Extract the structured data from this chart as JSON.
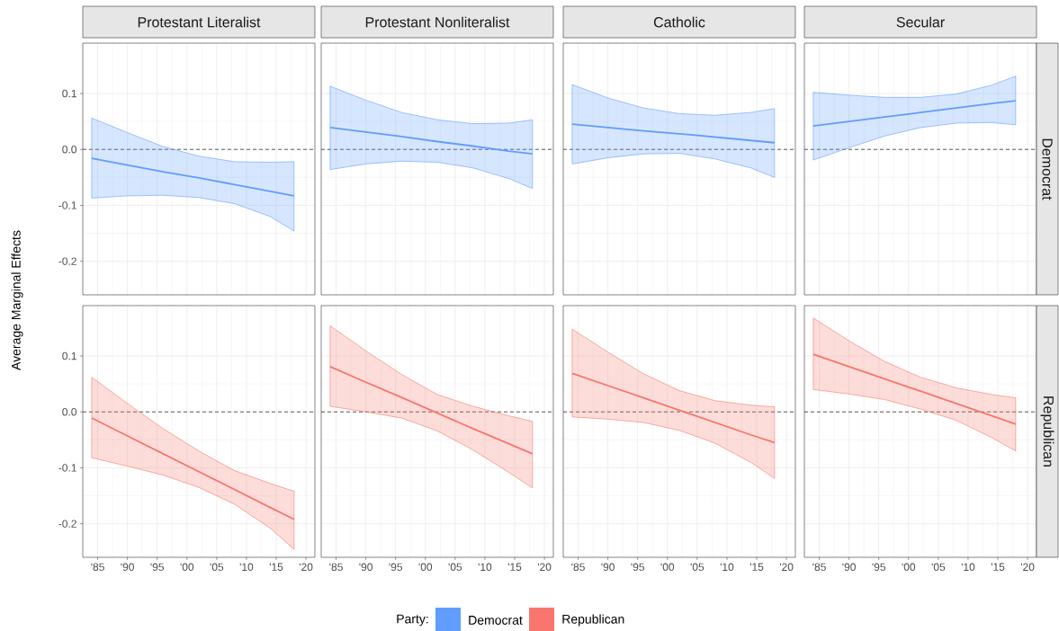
{
  "chart_data": [
    {
      "type": "line",
      "title": "Protestant Literalist",
      "ylabel": "Average Marginal Effects",
      "legend": "bottom",
      "legend_title": "Party:",
      "x": [
        1984,
        1990,
        1996,
        2002,
        2008,
        2014,
        2018
      ],
      "xlim": [
        1982.5,
        2021.5
      ],
      "xticks": [
        1985,
        1990,
        1995,
        2000,
        2005,
        2010,
        2015,
        2020
      ],
      "ylim": [
        -0.26,
        0.19
      ],
      "yticks": [
        -0.2,
        -0.1,
        {
          "value": 0,
          "label": "0.0"
        },
        0.1
      ],
      "grid": true,
      "tick_labels": "y",
      "ref_lines": [
        {
          "axis": "y",
          "value": 0,
          "line_style": "dashed"
        }
      ],
      "series": [
        {
          "name": "Democrat",
          "color": "#619cff",
          "values": [
            -0.016,
            -0.028,
            -0.04,
            -0.051,
            -0.063,
            -0.075,
            -0.083
          ],
          "upper": [
            0.056,
            0.03,
            0.005,
            -0.012,
            -0.022,
            -0.023,
            -0.022
          ],
          "lower": [
            -0.087,
            -0.083,
            -0.082,
            -0.086,
            -0.097,
            -0.12,
            -0.146
          ]
        }
      ]
    },
    {
      "type": "line",
      "title": "Protestant Nonliteralist",
      "x": [
        1984,
        1990,
        1996,
        2002,
        2008,
        2014,
        2018
      ],
      "xlim": [
        1982.5,
        2021.5
      ],
      "xticks": [
        1985,
        1990,
        1995,
        2000,
        2005,
        2010,
        2015,
        2020
      ],
      "ylim": [
        -0.26,
        0.19
      ],
      "yticks": [
        -0.2,
        -0.1,
        0,
        0.1
      ],
      "grid": true,
      "tick_labels": false,
      "ref_lines": [
        {
          "axis": "y",
          "value": 0,
          "line_style": "dashed"
        }
      ],
      "series": [
        {
          "color": "#619cff",
          "values": [
            0.039,
            0.031,
            0.023,
            0.014,
            0.006,
            -0.003,
            -0.008
          ],
          "upper": [
            0.113,
            0.088,
            0.066,
            0.053,
            0.046,
            0.047,
            0.053
          ],
          "lower": [
            -0.036,
            -0.026,
            -0.021,
            -0.023,
            -0.033,
            -0.052,
            -0.07
          ]
        }
      ]
    },
    {
      "type": "line",
      "title": "Catholic",
      "x": [
        1984,
        1990,
        1996,
        2002,
        2008,
        2014,
        2018
      ],
      "xlim": [
        1982.5,
        2021.5
      ],
      "xticks": [
        1985,
        1990,
        1995,
        2000,
        2005,
        2010,
        2015,
        2020
      ],
      "ylim": [
        -0.26,
        0.19
      ],
      "yticks": [
        -0.2,
        -0.1,
        0,
        0.1
      ],
      "grid": true,
      "tick_labels": false,
      "ref_lines": [
        {
          "axis": "y",
          "value": 0,
          "line_style": "dashed"
        }
      ],
      "series": [
        {
          "color": "#619cff",
          "values": [
            0.045,
            0.039,
            0.033,
            0.028,
            0.022,
            0.016,
            0.012
          ],
          "upper": [
            0.116,
            0.092,
            0.074,
            0.064,
            0.061,
            0.066,
            0.073
          ],
          "lower": [
            -0.026,
            -0.015,
            -0.008,
            -0.007,
            -0.017,
            -0.033,
            -0.05
          ]
        }
      ]
    },
    {
      "type": "line",
      "title": "Secular",
      "subtitle": "Democrat",
      "x": [
        1984,
        1990,
        1996,
        2002,
        2008,
        2014,
        2018
      ],
      "xlim": [
        1982.5,
        2021.5
      ],
      "xticks": [
        1985,
        1990,
        1995,
        2000,
        2005,
        2010,
        2015,
        2020
      ],
      "ylim": [
        -0.26,
        0.19
      ],
      "yticks": [
        -0.2,
        -0.1,
        0,
        0.1
      ],
      "grid": true,
      "tick_labels": false,
      "ref_lines": [
        {
          "axis": "y",
          "value": 0,
          "line_style": "dashed"
        }
      ],
      "series": [
        {
          "color": "#619cff",
          "values": [
            0.042,
            0.05,
            0.058,
            0.066,
            0.074,
            0.082,
            0.087
          ],
          "upper": [
            0.102,
            0.097,
            0.093,
            0.093,
            0.099,
            0.115,
            0.131
          ],
          "lower": [
            -0.019,
            0.003,
            0.024,
            0.039,
            0.047,
            0.048,
            0.044
          ]
        }
      ]
    },
    {
      "type": "line",
      "x": [
        1984,
        1990,
        1996,
        2002,
        2008,
        2014,
        2018
      ],
      "xlim": [
        1982.5,
        2021.5
      ],
      "xticks": [
        {
          "value": 1985,
          "label": "'85"
        },
        {
          "value": 1990,
          "label": "'90"
        },
        {
          "value": 1995,
          "label": "'95"
        },
        {
          "value": 2000,
          "label": "'00"
        },
        {
          "value": 2005,
          "label": "'05"
        },
        {
          "value": 2010,
          "label": "'10"
        },
        {
          "value": 2015,
          "label": "'15"
        },
        {
          "value": 2020,
          "label": "'20"
        }
      ],
      "ylim": [
        -0.26,
        0.19
      ],
      "yticks": [
        -0.2,
        -0.1,
        {
          "value": 0,
          "label": "0.0"
        },
        0.1
      ],
      "grid": true,
      "ref_lines": [
        {
          "axis": "y",
          "value": 0,
          "line_style": "dashed"
        }
      ],
      "series": [
        {
          "name": "Republican",
          "color": "#f8766d",
          "values": [
            -0.011,
            -0.043,
            -0.075,
            -0.107,
            -0.139,
            -0.171,
            -0.192
          ],
          "upper": [
            0.062,
            0.015,
            -0.03,
            -0.07,
            -0.105,
            -0.128,
            -0.142
          ],
          "lower": [
            -0.082,
            -0.097,
            -0.113,
            -0.135,
            -0.165,
            -0.208,
            -0.246
          ]
        }
      ]
    },
    {
      "type": "line",
      "x": [
        1984,
        1990,
        1996,
        2002,
        2008,
        2014,
        2018
      ],
      "xlim": [
        1982.5,
        2021.5
      ],
      "xticks": [
        {
          "value": 1985,
          "label": "'85"
        },
        {
          "value": 1990,
          "label": "'90"
        },
        {
          "value": 1995,
          "label": "'95"
        },
        {
          "value": 2000,
          "label": "'00"
        },
        {
          "value": 2005,
          "label": "'05"
        },
        {
          "value": 2010,
          "label": "'10"
        },
        {
          "value": 2015,
          "label": "'15"
        },
        {
          "value": 2020,
          "label": "'20"
        }
      ],
      "ylim": [
        -0.26,
        0.19
      ],
      "yticks": [
        -0.2,
        -0.1,
        0,
        0.1
      ],
      "grid": true,
      "tick_labels": "x",
      "ref_lines": [
        {
          "axis": "y",
          "value": 0,
          "line_style": "dashed"
        }
      ],
      "series": [
        {
          "color": "#f8766d",
          "values": [
            0.081,
            0.053,
            0.026,
            -0.002,
            -0.03,
            -0.057,
            -0.075
          ],
          "upper": [
            0.154,
            0.109,
            0.067,
            0.031,
            0.01,
            -0.007,
            -0.017
          ],
          "lower": [
            0.01,
            0.0,
            -0.011,
            -0.034,
            -0.068,
            -0.108,
            -0.136
          ]
        }
      ]
    },
    {
      "type": "line",
      "x": [
        1984,
        1990,
        1996,
        2002,
        2008,
        2014,
        2018
      ],
      "xlim": [
        1982.5,
        2021.5
      ],
      "xticks": [
        {
          "value": 1985,
          "label": "'85"
        },
        {
          "value": 1990,
          "label": "'90"
        },
        {
          "value": 1995,
          "label": "'95"
        },
        {
          "value": 2000,
          "label": "'00"
        },
        {
          "value": 2005,
          "label": "'05"
        },
        {
          "value": 2010,
          "label": "'10"
        },
        {
          "value": 2015,
          "label": "'15"
        },
        {
          "value": 2020,
          "label": "'20"
        }
      ],
      "ylim": [
        -0.26,
        0.19
      ],
      "yticks": [
        -0.2,
        -0.1,
        0,
        0.1
      ],
      "grid": true,
      "tick_labels": "x",
      "ref_lines": [
        {
          "axis": "y",
          "value": 0,
          "line_style": "dashed"
        }
      ],
      "series": [
        {
          "color": "#f8766d",
          "values": [
            0.069,
            0.047,
            0.025,
            0.003,
            -0.019,
            -0.041,
            -0.055
          ],
          "upper": [
            0.148,
            0.107,
            0.068,
            0.038,
            0.02,
            0.012,
            0.009
          ],
          "lower": [
            -0.009,
            -0.013,
            -0.019,
            -0.033,
            -0.056,
            -0.09,
            -0.119
          ]
        }
      ]
    },
    {
      "type": "line",
      "subtitle": "Republican",
      "x": [
        1984,
        1990,
        1996,
        2002,
        2008,
        2014,
        2018
      ],
      "xlim": [
        1982.5,
        2021.5
      ],
      "xticks": [
        {
          "value": 1985,
          "label": "'85"
        },
        {
          "value": 1990,
          "label": "'90"
        },
        {
          "value": 1995,
          "label": "'95"
        },
        {
          "value": 2000,
          "label": "'00"
        },
        {
          "value": 2005,
          "label": "'05"
        },
        {
          "value": 2010,
          "label": "'10"
        },
        {
          "value": 2015,
          "label": "'15"
        },
        {
          "value": 2020,
          "label": "'20"
        }
      ],
      "ylim": [
        -0.26,
        0.19
      ],
      "yticks": [
        -0.2,
        -0.1,
        0,
        0.1
      ],
      "grid": true,
      "tick_labels": "x",
      "ref_lines": [
        {
          "axis": "y",
          "value": 0,
          "line_style": "dashed"
        }
      ],
      "series": [
        {
          "color": "#f8766d",
          "values": [
            0.103,
            0.081,
            0.059,
            0.037,
            0.015,
            -0.007,
            -0.022
          ],
          "upper": [
            0.168,
            0.127,
            0.09,
            0.062,
            0.043,
            0.031,
            0.025
          ],
          "lower": [
            0.04,
            0.032,
            0.022,
            0.005,
            -0.015,
            -0.046,
            -0.07
          ]
        }
      ]
    }
  ]
}
